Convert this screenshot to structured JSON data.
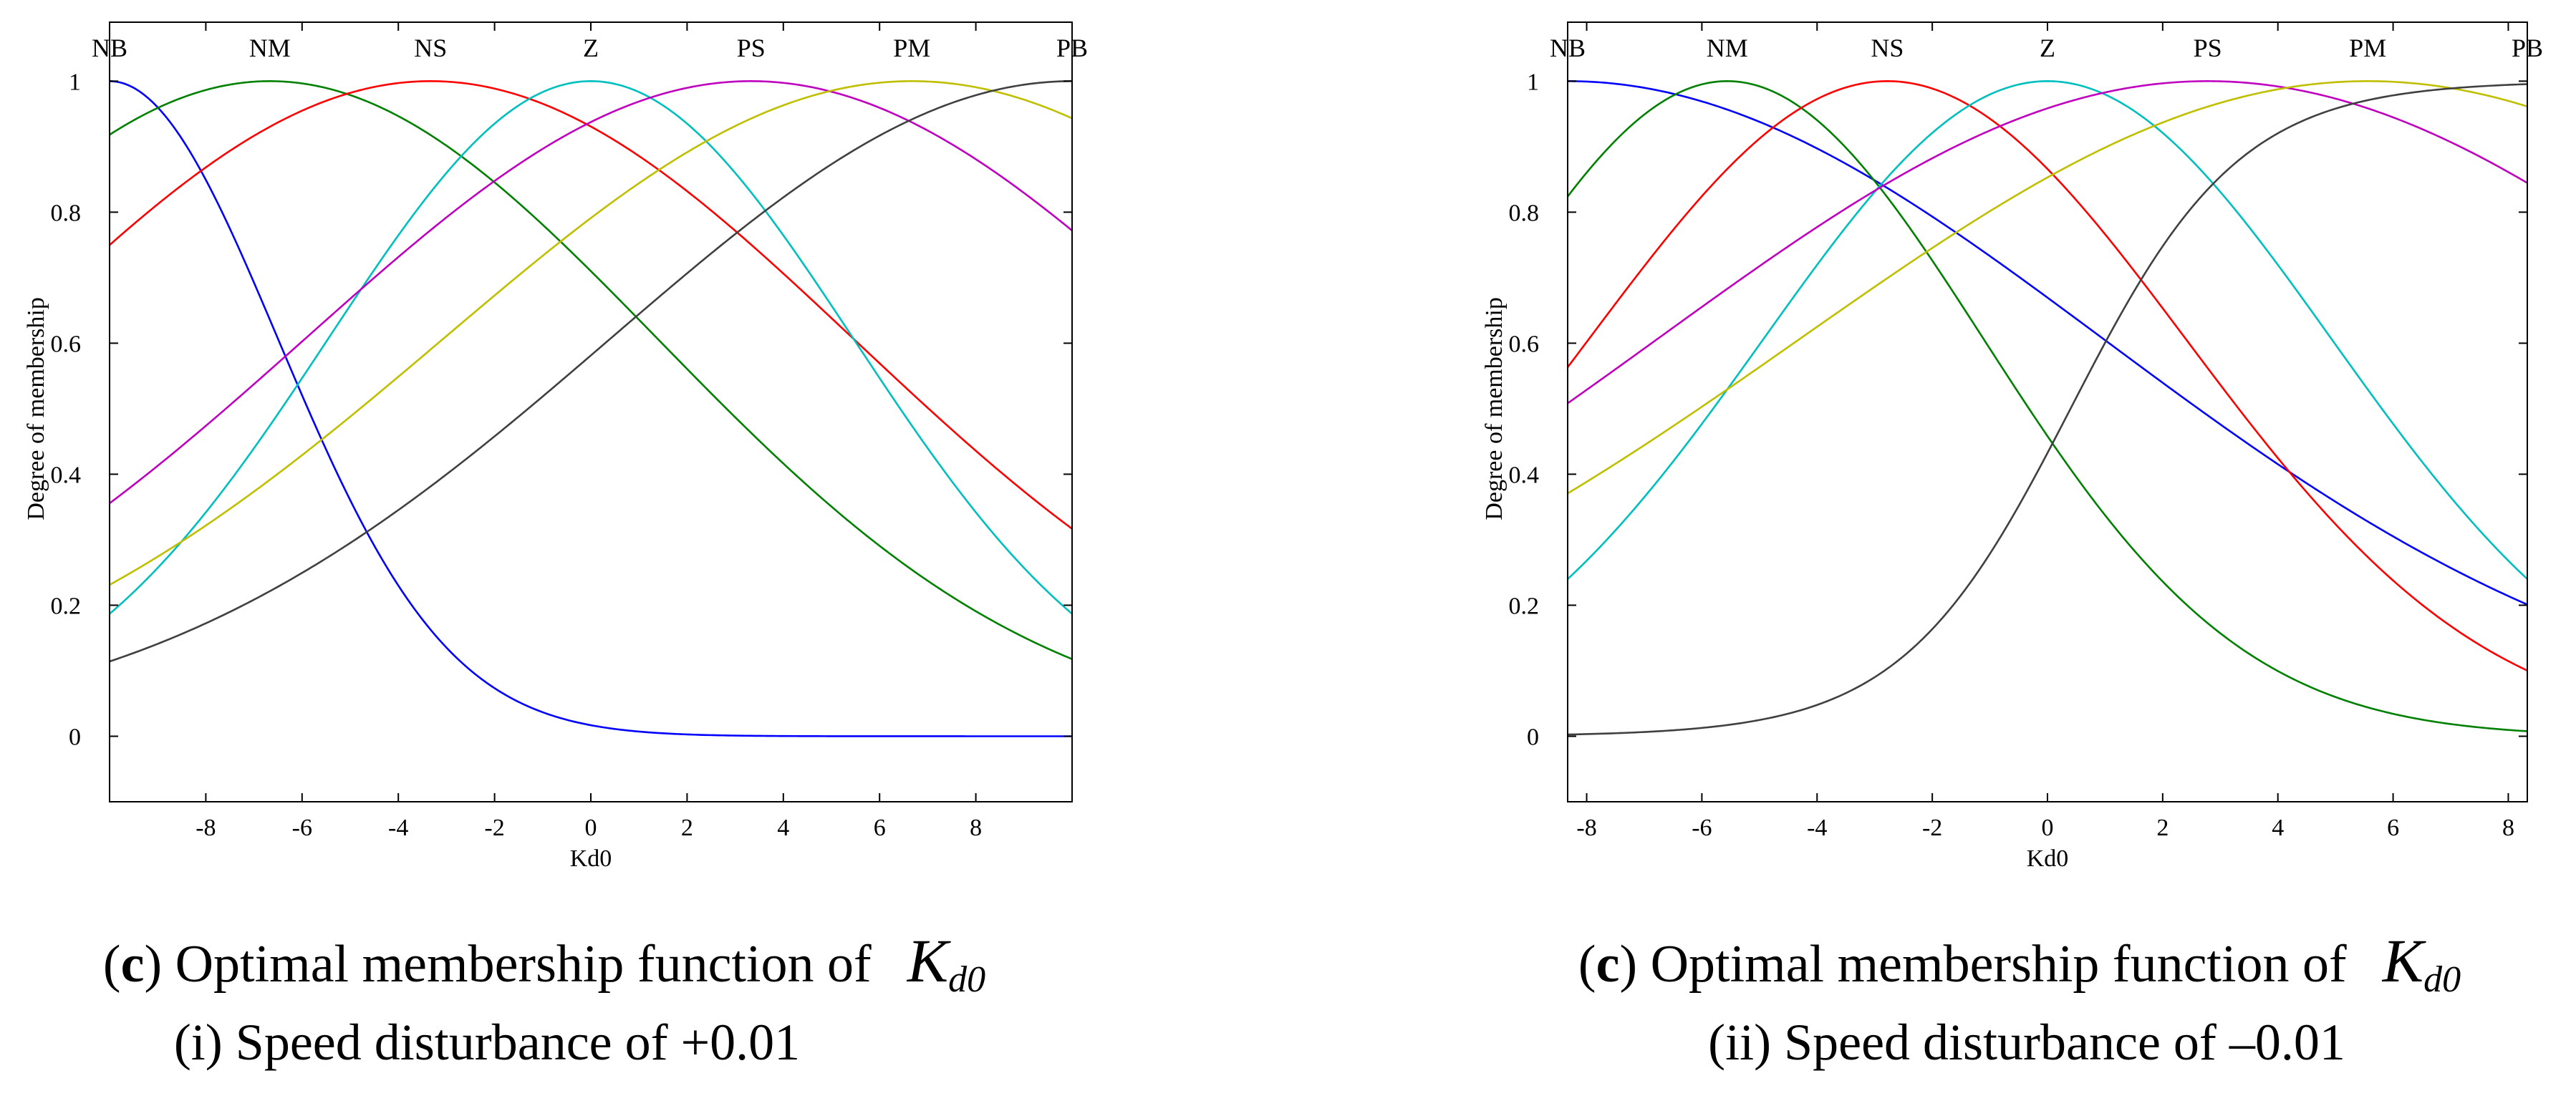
{
  "figure": {
    "panels": [
      {
        "caption": {
          "letter": "c",
          "text": "Optimal membership function of",
          "var": "K",
          "sub": "d0",
          "subcaption": "(i) Speed disturbance of +0.01"
        }
      },
      {
        "caption": {
          "letter": "c",
          "text": "Optimal membership function of",
          "var": "K",
          "sub": "d0",
          "subcaption": "(ii) Speed disturbance of –0.01"
        }
      }
    ]
  },
  "chart_data": [
    {
      "type": "line",
      "title": "",
      "xlabel": "Kd0",
      "ylabel": "Degree of membership",
      "xlim": [
        -10,
        10
      ],
      "ylim": [
        -0.1,
        1.09
      ],
      "xticks": [
        -8,
        -6,
        -4,
        -2,
        0,
        2,
        4,
        6,
        8
      ],
      "xtick_labels": [
        "-8",
        "-6",
        "-4",
        "-2",
        "0",
        "2",
        "4",
        "6",
        "8"
      ],
      "yticks": [
        0,
        0.2,
        0.4,
        0.6,
        0.8,
        1
      ],
      "ytick_labels": [
        "0",
        "0.2",
        "0.4",
        "0.6",
        "0.8",
        "1"
      ],
      "top_labels": [
        {
          "text": "NB",
          "x": -10
        },
        {
          "text": "NM",
          "x": -6.67
        },
        {
          "text": "NS",
          "x": -3.33
        },
        {
          "text": "Z",
          "x": 0
        },
        {
          "text": "PS",
          "x": 3.33
        },
        {
          "text": "PM",
          "x": 6.67
        },
        {
          "text": "PB",
          "x": 10
        }
      ],
      "series": [
        {
          "name": "NB",
          "color": "#0000ff",
          "kind": "gauss",
          "center": -10,
          "sigma": 3.5
        },
        {
          "name": "NM",
          "color": "#008000",
          "kind": "gauss",
          "center": -6.67,
          "sigma": 8.06
        },
        {
          "name": "NS",
          "color": "#ff0000",
          "kind": "gauss",
          "center": -3.33,
          "sigma": 8.79
        },
        {
          "name": "Z",
          "color": "#00bfbf",
          "kind": "gauss",
          "center": 0,
          "sigma": 5.46
        },
        {
          "name": "PS",
          "color": "#bf00bf",
          "kind": "gauss",
          "center": 3.33,
          "sigma": 9.27
        },
        {
          "name": "PM",
          "color": "#bfbf00",
          "kind": "gauss",
          "center": 6.67,
          "sigma": 9.74
        },
        {
          "name": "PB",
          "color": "#404040",
          "kind": "gauss",
          "center": 10,
          "sigma": 9.6
        }
      ]
    },
    {
      "type": "line",
      "title": "",
      "xlabel": "Kd0",
      "ylabel": "Degree of membership",
      "xlim": [
        -8.33,
        8.33
      ],
      "ylim": [
        -0.1,
        1.09
      ],
      "xticks": [
        -8,
        -6,
        -4,
        -2,
        0,
        2,
        4,
        6,
        8
      ],
      "xtick_labels": [
        "-8",
        "-6",
        "-4",
        "-2",
        "0",
        "2",
        "4",
        "6",
        "8"
      ],
      "yticks": [
        0,
        0.2,
        0.4,
        0.6,
        0.8,
        1
      ],
      "ytick_labels": [
        "0",
        "0.2",
        "0.4",
        "0.6",
        "0.8",
        "1"
      ],
      "top_labels": [
        {
          "text": "NB",
          "x": -8.33
        },
        {
          "text": "NM",
          "x": -5.56
        },
        {
          "text": "NS",
          "x": -2.78
        },
        {
          "text": "Z",
          "x": 0
        },
        {
          "text": "PS",
          "x": 2.78
        },
        {
          "text": "PM",
          "x": 5.56
        },
        {
          "text": "PB",
          "x": 8.33
        }
      ],
      "series": [
        {
          "name": "NB",
          "color": "#0000ff",
          "kind": "gauss",
          "center": -8.33,
          "sigma": 9.3
        },
        {
          "name": "NM",
          "color": "#008000",
          "kind": "gauss",
          "center": -5.56,
          "sigma": 4.45
        },
        {
          "name": "NS",
          "color": "#ff0000",
          "kind": "gauss",
          "center": -2.78,
          "sigma": 5.18
        },
        {
          "name": "Z",
          "color": "#00bfbf",
          "kind": "gauss",
          "center": 0,
          "sigma": 4.93
        },
        {
          "name": "PS",
          "color": "#bf00bf",
          "kind": "gauss",
          "center": 2.78,
          "sigma": 9.55
        },
        {
          "name": "PM",
          "color": "#bfbf00",
          "kind": "gauss",
          "center": 5.56,
          "sigma": 9.86
        },
        {
          "name": "PB",
          "color": "#404040",
          "kind": "sigmoid",
          "center": 0.4,
          "slope": 0.68
        }
      ]
    }
  ]
}
